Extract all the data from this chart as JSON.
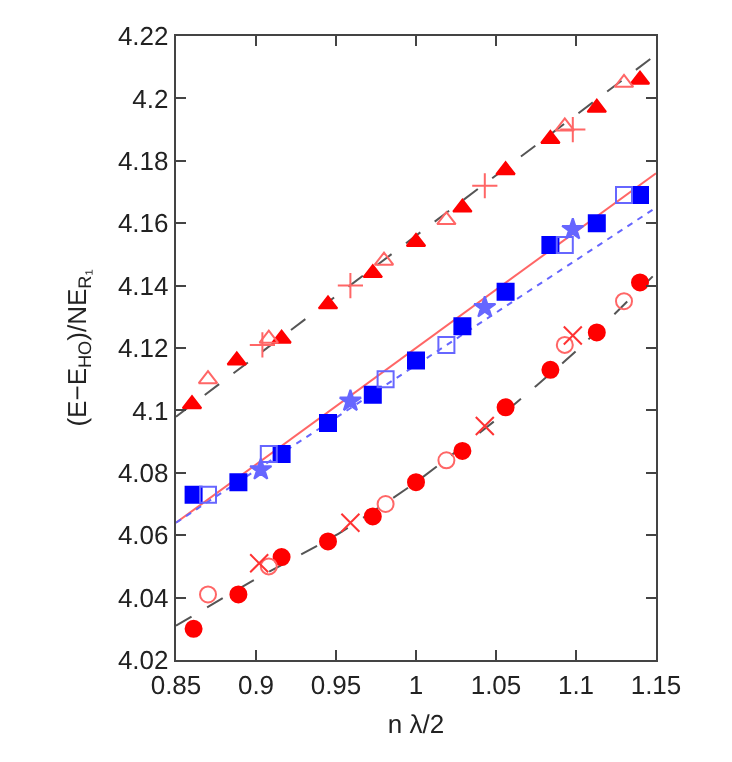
{
  "chart_data": {
    "type": "scatter",
    "xlabel": "n λ/2",
    "ylabel": "(E−E$_{HO}$)/NE$_{R₁}$",
    "xlim": [
      0.85,
      1.15
    ],
    "xticks": [
      0.85,
      0.9,
      0.95,
      1,
      1.05,
      1.1,
      1.15
    ],
    "ylim": [
      4.02,
      4.22
    ],
    "yticks": [
      4.02,
      4.04,
      4.06,
      4.08,
      4.1,
      4.12,
      4.14,
      4.16,
      4.18,
      4.2,
      4.22
    ],
    "series": [
      {
        "type": "line",
        "color": "#555555",
        "line_style": "dashed",
        "marker": "none",
        "x": [
          0.85,
          1.15
        ],
        "values": [
          4.098,
          4.214
        ]
      },
      {
        "type": "line",
        "color": "#ff6666",
        "line_style": "solid",
        "marker": "none",
        "x": [
          0.85,
          1.15
        ],
        "values": [
          4.064,
          4.176
        ]
      },
      {
        "type": "line",
        "color": "#6666ff",
        "line_style": "dotted",
        "marker": "none",
        "x": [
          0.85,
          1.15
        ],
        "values": [
          4.064,
          4.165
        ]
      },
      {
        "type": "line",
        "color": "#555555",
        "line_style": "dashed",
        "marker": "none",
        "x": [
          0.85,
          0.9,
          0.95,
          1.0,
          1.05,
          1.1,
          1.15
        ],
        "values": [
          4.031,
          4.046,
          4.06,
          4.077,
          4.097,
          4.119,
          4.144
        ]
      },
      {
        "color": "#ff0000",
        "marker": "triangle",
        "x": [
          0.86,
          0.888,
          0.916,
          0.945,
          0.973,
          1.0,
          1.029,
          1.056,
          1.084,
          1.113,
          1.14
        ],
        "values": [
          4.102,
          4.116,
          4.123,
          4.134,
          4.144,
          4.154,
          4.165,
          4.177,
          4.187,
          4.197,
          4.206
        ]
      },
      {
        "color": "#ff6666",
        "marker": "triangle-open",
        "x": [
          0.87,
          0.908,
          0.98,
          1.019,
          1.093,
          1.13
        ],
        "values": [
          4.11,
          4.123,
          4.148,
          4.161,
          4.191,
          4.205
        ]
      },
      {
        "color": "#ff6666",
        "marker": "cross",
        "x": [
          0.904,
          0.959,
          1.043,
          1.098
        ],
        "values": [
          4.121,
          4.14,
          4.172,
          4.19
        ]
      },
      {
        "color": "#0000ff",
        "marker": "square",
        "x": [
          0.861,
          0.889,
          0.916,
          0.945,
          0.973,
          1.0,
          1.029,
          1.056,
          1.084,
          1.113,
          1.14
        ],
        "values": [
          4.073,
          4.077,
          4.086,
          4.096,
          4.105,
          4.116,
          4.127,
          4.138,
          4.153,
          4.16,
          4.169
        ]
      },
      {
        "color": "#6666ff",
        "marker": "square-open",
        "x": [
          0.87,
          0.908,
          0.981,
          1.019,
          1.093,
          1.13
        ],
        "values": [
          4.073,
          4.086,
          4.11,
          4.121,
          4.153,
          4.169
        ]
      },
      {
        "color": "#6666ff",
        "marker": "star",
        "x": [
          0.903,
          0.959,
          1.043,
          1.098
        ],
        "values": [
          4.081,
          4.103,
          4.133,
          4.158
        ]
      },
      {
        "color": "#ff0000",
        "marker": "circle",
        "x": [
          0.861,
          0.889,
          0.916,
          0.945,
          0.973,
          1.0,
          1.029,
          1.056,
          1.084,
          1.113,
          1.14
        ],
        "values": [
          4.03,
          4.041,
          4.053,
          4.058,
          4.066,
          4.077,
          4.087,
          4.101,
          4.113,
          4.125,
          4.141
        ]
      },
      {
        "color": "#ff6666",
        "marker": "circle-open",
        "x": [
          0.87,
          0.908,
          0.981,
          1.019,
          1.093,
          1.13
        ],
        "values": [
          4.041,
          4.05,
          4.07,
          4.084,
          4.121,
          4.135
        ]
      },
      {
        "color": "#ff3333",
        "marker": "x",
        "x": [
          0.902,
          0.959,
          1.043,
          1.098
        ],
        "values": [
          4.051,
          4.064,
          4.095,
          4.124
        ]
      }
    ]
  }
}
